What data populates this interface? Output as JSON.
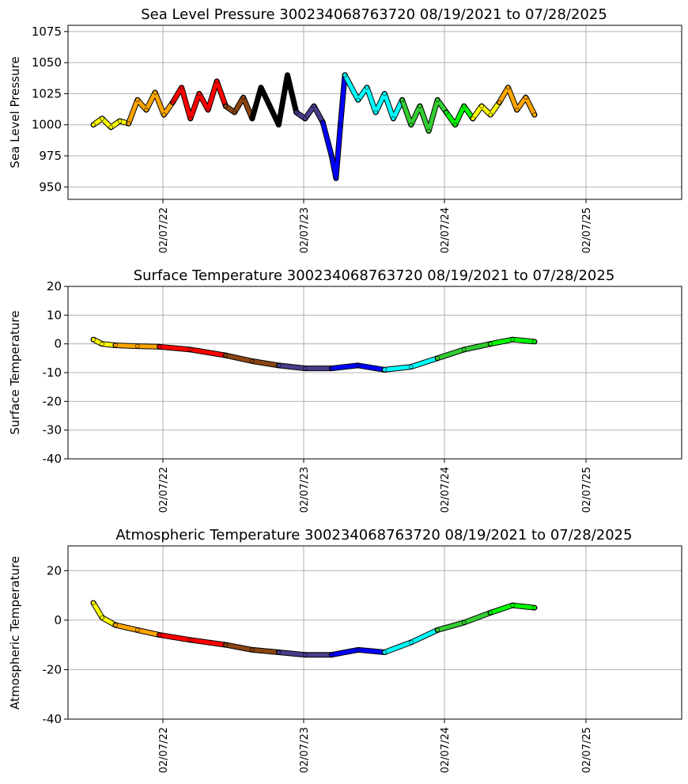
{
  "chart_data": [
    {
      "type": "scatter",
      "title": "Sea Level Pressure 300234068763720  08/19/2021 to 07/28/2025",
      "ylabel": "Sea Level Pressure",
      "xlabel": "",
      "ylim": [
        940,
        1080
      ],
      "yticks": [
        950,
        975,
        1000,
        1025,
        1050,
        1075
      ],
      "xticks": [
        "02/07/22",
        "02/07/23",
        "02/07/24",
        "02/07/25"
      ],
      "grid": true,
      "series": [
        {
          "color": "#ffff00",
          "values": [
            [
              0.0,
              1000
            ],
            [
              0.02,
              1005
            ],
            [
              0.04,
              998
            ],
            [
              0.06,
              1003
            ],
            [
              0.08,
              1001
            ]
          ]
        },
        {
          "color": "#ffa500",
          "values": [
            [
              0.08,
              1001
            ],
            [
              0.1,
              1020
            ],
            [
              0.12,
              1012
            ],
            [
              0.14,
              1026
            ],
            [
              0.16,
              1008
            ],
            [
              0.18,
              1018
            ]
          ]
        },
        {
          "color": "#ff0000",
          "values": [
            [
              0.18,
              1018
            ],
            [
              0.2,
              1030
            ],
            [
              0.22,
              1005
            ],
            [
              0.24,
              1025
            ],
            [
              0.26,
              1012
            ],
            [
              0.28,
              1035
            ],
            [
              0.3,
              1015
            ]
          ]
        },
        {
          "color": "#8b4513",
          "values": [
            [
              0.3,
              1015
            ],
            [
              0.32,
              1010
            ],
            [
              0.34,
              1022
            ],
            [
              0.36,
              1005
            ]
          ]
        },
        {
          "color": "#000000",
          "values": [
            [
              0.36,
              1005
            ],
            [
              0.38,
              1030
            ],
            [
              0.4,
              1015
            ],
            [
              0.42,
              1000
            ],
            [
              0.44,
              1040
            ],
            [
              0.46,
              1010
            ]
          ]
        },
        {
          "color": "#483d8b",
          "values": [
            [
              0.46,
              1010
            ],
            [
              0.48,
              1005
            ],
            [
              0.5,
              1015
            ],
            [
              0.52,
              1002
            ]
          ]
        },
        {
          "color": "#0000ff",
          "values": [
            [
              0.52,
              1002
            ],
            [
              0.54,
              975
            ],
            [
              0.55,
              957
            ],
            [
              0.56,
              1000
            ],
            [
              0.57,
              1040
            ]
          ]
        },
        {
          "color": "#00ffff",
          "values": [
            [
              0.57,
              1040
            ],
            [
              0.6,
              1020
            ],
            [
              0.62,
              1030
            ],
            [
              0.64,
              1010
            ],
            [
              0.66,
              1025
            ],
            [
              0.68,
              1005
            ],
            [
              0.7,
              1020
            ]
          ]
        },
        {
          "color": "#32cd32",
          "values": [
            [
              0.7,
              1020
            ],
            [
              0.72,
              1000
            ],
            [
              0.74,
              1015
            ],
            [
              0.76,
              995
            ],
            [
              0.78,
              1020
            ],
            [
              0.8,
              1010
            ]
          ]
        },
        {
          "color": "#00ff00",
          "values": [
            [
              0.8,
              1010
            ],
            [
              0.82,
              1000
            ],
            [
              0.84,
              1015
            ],
            [
              0.86,
              1005
            ]
          ]
        },
        {
          "color": "#ffff00",
          "values": [
            [
              0.86,
              1005
            ],
            [
              0.88,
              1015
            ],
            [
              0.9,
              1008
            ],
            [
              0.92,
              1018
            ]
          ]
        },
        {
          "color": "#ffa500",
          "values": [
            [
              0.92,
              1018
            ],
            [
              0.94,
              1030
            ],
            [
              0.96,
              1012
            ],
            [
              0.98,
              1022
            ],
            [
              1.0,
              1008
            ]
          ]
        }
      ]
    },
    {
      "type": "scatter",
      "title": "Surface Temperature 300234068763720  08/19/2021 to 07/28/2025",
      "ylabel": "Surface Temperature",
      "xlabel": "",
      "ylim": [
        -40,
        20
      ],
      "yticks": [
        -40,
        -30,
        -20,
        -10,
        0,
        10,
        20
      ],
      "xticks": [
        "02/07/22",
        "02/07/23",
        "02/07/24",
        "02/07/25"
      ],
      "grid": true,
      "series": [
        {
          "color": "#ffff00",
          "values": [
            [
              0.0,
              1.5
            ],
            [
              0.02,
              0
            ],
            [
              0.05,
              -0.5
            ]
          ]
        },
        {
          "color": "#ffa500",
          "values": [
            [
              0.05,
              -0.5
            ],
            [
              0.1,
              -0.8
            ],
            [
              0.15,
              -1
            ]
          ]
        },
        {
          "color": "#ff0000",
          "values": [
            [
              0.15,
              -1
            ],
            [
              0.22,
              -2
            ],
            [
              0.3,
              -4
            ]
          ]
        },
        {
          "color": "#8b4513",
          "values": [
            [
              0.3,
              -4
            ],
            [
              0.36,
              -6
            ],
            [
              0.42,
              -7.5
            ]
          ]
        },
        {
          "color": "#483d8b",
          "values": [
            [
              0.42,
              -7.5
            ],
            [
              0.48,
              -8.5
            ],
            [
              0.54,
              -8.5
            ]
          ]
        },
        {
          "color": "#0000ff",
          "values": [
            [
              0.54,
              -8.5
            ],
            [
              0.6,
              -7.5
            ],
            [
              0.66,
              -9
            ]
          ]
        },
        {
          "color": "#00ffff",
          "values": [
            [
              0.66,
              -9
            ],
            [
              0.72,
              -8
            ],
            [
              0.78,
              -5
            ]
          ]
        },
        {
          "color": "#32cd32",
          "values": [
            [
              0.78,
              -5
            ],
            [
              0.84,
              -2
            ],
            [
              0.9,
              0
            ]
          ]
        },
        {
          "color": "#00ff00",
          "values": [
            [
              0.9,
              0
            ],
            [
              0.95,
              1.5
            ],
            [
              1.0,
              0.8
            ]
          ]
        }
      ]
    },
    {
      "type": "scatter",
      "title": "Atmospheric Temperature 300234068763720  08/19/2021 to 07/28/2025",
      "ylabel": "Atmospheric Temperature",
      "xlabel": "",
      "ylim": [
        -40,
        30
      ],
      "yticks": [
        -40,
        -20,
        0,
        20
      ],
      "xticks": [
        "02/07/22",
        "02/07/23",
        "02/07/24",
        "02/07/25"
      ],
      "grid": true,
      "series": [
        {
          "color": "#ffff00",
          "values": [
            [
              0.0,
              7
            ],
            [
              0.02,
              1
            ],
            [
              0.05,
              -2
            ]
          ]
        },
        {
          "color": "#ffa500",
          "values": [
            [
              0.05,
              -2
            ],
            [
              0.1,
              -4
            ],
            [
              0.15,
              -6
            ]
          ]
        },
        {
          "color": "#ff0000",
          "values": [
            [
              0.15,
              -6
            ],
            [
              0.22,
              -8
            ],
            [
              0.3,
              -10
            ]
          ]
        },
        {
          "color": "#8b4513",
          "values": [
            [
              0.3,
              -10
            ],
            [
              0.36,
              -12
            ],
            [
              0.42,
              -13
            ]
          ]
        },
        {
          "color": "#483d8b",
          "values": [
            [
              0.42,
              -13
            ],
            [
              0.48,
              -14
            ],
            [
              0.54,
              -14
            ]
          ]
        },
        {
          "color": "#0000ff",
          "values": [
            [
              0.54,
              -14
            ],
            [
              0.6,
              -12
            ],
            [
              0.66,
              -13
            ]
          ]
        },
        {
          "color": "#00ffff",
          "values": [
            [
              0.66,
              -13
            ],
            [
              0.72,
              -9
            ],
            [
              0.78,
              -4
            ]
          ]
        },
        {
          "color": "#32cd32",
          "values": [
            [
              0.78,
              -4
            ],
            [
              0.84,
              -1
            ],
            [
              0.9,
              3
            ]
          ]
        },
        {
          "color": "#00ff00",
          "values": [
            [
              0.9,
              3
            ],
            [
              0.95,
              6
            ],
            [
              1.0,
              5
            ]
          ]
        }
      ]
    }
  ]
}
